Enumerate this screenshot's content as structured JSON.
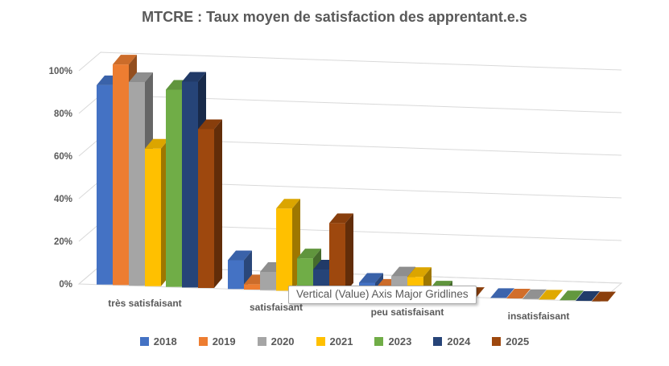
{
  "tooltip": {
    "text": "Vertical (Value) Axis Major Gridlines"
  },
  "chart_data": {
    "type": "bar",
    "subtype": "3d-clustered-column",
    "title": "MTCRE : Taux moyen de satisfaction des apprentant.e.s",
    "categories": [
      "très satisfaisant",
      "satisfaisant",
      "peu satisfaisant",
      "insatisfaisant"
    ],
    "series": [
      {
        "name": "2018",
        "color": "#4472C4",
        "values": [
          89,
          9,
          2,
          0
        ]
      },
      {
        "name": "2019",
        "color": "#ED7D31",
        "values": [
          99,
          1,
          1,
          0
        ]
      },
      {
        "name": "2020",
        "color": "#A5A5A5",
        "values": [
          91,
          4,
          4,
          0
        ]
      },
      {
        "name": "2021",
        "color": "#FFC000",
        "values": [
          60,
          34,
          4,
          0
        ]
      },
      {
        "name": "2023",
        "color": "#70AD47",
        "values": [
          88,
          11,
          1,
          0
        ]
      },
      {
        "name": "2024",
        "color": "#264478",
        "values": [
          92,
          6,
          0,
          0
        ]
      },
      {
        "name": "2025",
        "color": "#9E480E",
        "values": [
          70,
          28,
          0,
          0
        ]
      }
    ],
    "ylabel": "",
    "xlabel": "",
    "ylim": [
      0,
      100
    ],
    "ytick_labels": [
      "0%",
      "20%",
      "40%",
      "60%",
      "80%",
      "100%"
    ],
    "ytick_values": [
      0,
      20,
      40,
      60,
      80,
      100
    ],
    "grid": true,
    "legend_position": "bottom",
    "colors": {
      "gridline": "#D9D9D9",
      "axis_text": "#595959",
      "title_text": "#595959",
      "background": "#FFFFFF"
    }
  }
}
